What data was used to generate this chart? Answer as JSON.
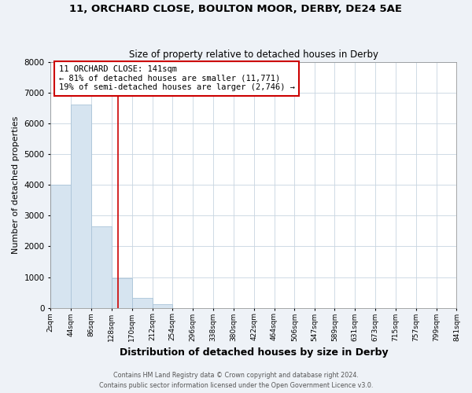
{
  "title": "11, ORCHARD CLOSE, BOULTON MOOR, DERBY, DE24 5AE",
  "subtitle": "Size of property relative to detached houses in Derby",
  "xlabel": "Distribution of detached houses by size in Derby",
  "ylabel": "Number of detached properties",
  "bin_edges": [
    2,
    44,
    86,
    128,
    170,
    212,
    254,
    296,
    338,
    380,
    422,
    464,
    506,
    547,
    589,
    631,
    673,
    715,
    757,
    799,
    841
  ],
  "bar_heights": [
    4000,
    6600,
    2650,
    960,
    330,
    130,
    0,
    0,
    0,
    0,
    0,
    0,
    0,
    0,
    0,
    0,
    0,
    0,
    0,
    0
  ],
  "bar_color": "#d6e4f0",
  "bar_edgecolor": "#aac4d8",
  "property_line_x": 141,
  "ylim": [
    0,
    8000
  ],
  "annotation_line1": "11 ORCHARD CLOSE: 141sqm",
  "annotation_line2": "← 81% of detached houses are smaller (11,771)",
  "annotation_line3": "19% of semi-detached houses are larger (2,746) →",
  "box_color": "#cc0000",
  "footer1": "Contains HM Land Registry data © Crown copyright and database right 2024.",
  "footer2": "Contains public sector information licensed under the Open Government Licence v3.0.",
  "tick_labels": [
    "2sqm",
    "44sqm",
    "86sqm",
    "128sqm",
    "170sqm",
    "212sqm",
    "254sqm",
    "296sqm",
    "338sqm",
    "380sqm",
    "422sqm",
    "464sqm",
    "506sqm",
    "547sqm",
    "589sqm",
    "631sqm",
    "673sqm",
    "715sqm",
    "757sqm",
    "799sqm",
    "841sqm"
  ],
  "background_color": "#eef2f7",
  "plot_background": "#ffffff",
  "grid_color": "#c8d4e0",
  "title_fontsize": 9.5,
  "subtitle_fontsize": 8.5,
  "ylabel_fontsize": 8,
  "xlabel_fontsize": 9,
  "tick_fontsize": 6.5,
  "ytick_fontsize": 7.5,
  "annotation_fontsize": 7.5,
  "footer_fontsize": 5.8
}
